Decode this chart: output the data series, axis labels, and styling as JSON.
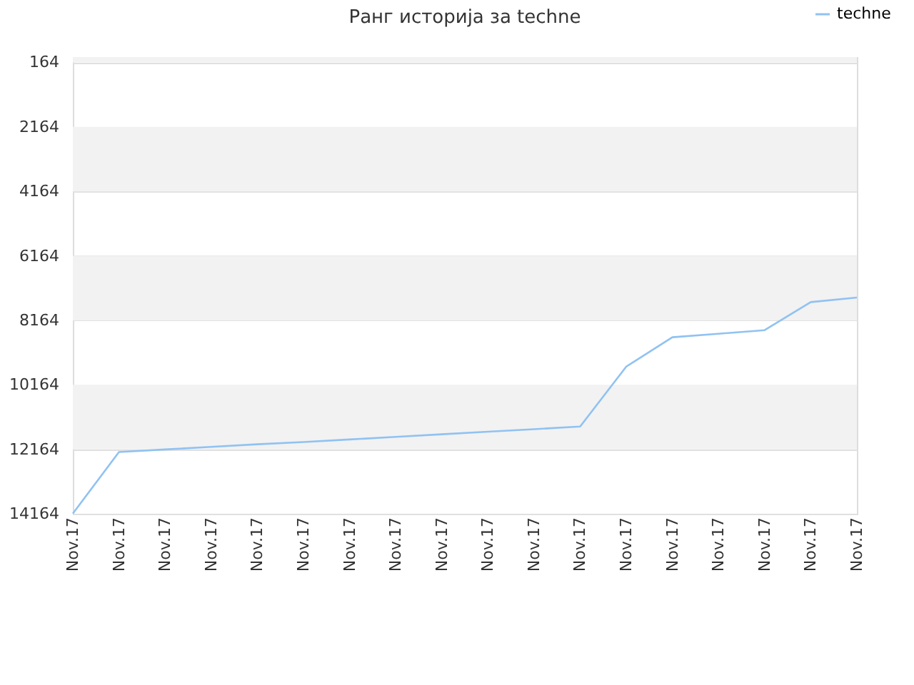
{
  "chart_data": {
    "type": "line",
    "title": "Ранг историја за techne",
    "categories": [
      "Nov.17",
      "Nov.17",
      "Nov.17",
      "Nov.17",
      "Nov.17",
      "Nov.17",
      "Nov.17",
      "Nov.17",
      "Nov.17",
      "Nov.17",
      "Nov.17",
      "Nov.17",
      "Nov.17",
      "Nov.17",
      "Nov.17",
      "Nov.17",
      "Nov.17",
      "Nov.17"
    ],
    "series": [
      {
        "name": "techne",
        "color": "#90c2f2",
        "values": [
          14160,
          12250,
          12170,
          12090,
          12010,
          11940,
          11860,
          11780,
          11700,
          11620,
          11540,
          11460,
          9600,
          8690,
          8580,
          8470,
          7600,
          7460
        ]
      }
    ],
    "ylim": [
      14164,
      0
    ],
    "yticks": [
      164,
      2164,
      4164,
      6164,
      8164,
      10164,
      12164,
      14164
    ],
    "bands": [
      {
        "axis": "y",
        "from": 0,
        "to": 164,
        "color": "#f2f2f2"
      },
      {
        "axis": "y",
        "from": 2164,
        "to": 4164,
        "color": "#f2f2f2"
      },
      {
        "axis": "y",
        "from": 6164,
        "to": 8164,
        "color": "#f2f2f2"
      },
      {
        "axis": "y",
        "from": 10164,
        "to": 12164,
        "color": "#f2f2f2"
      }
    ],
    "grid": "y",
    "legend": "top right",
    "marker": "none",
    "line_style": "solid"
  }
}
